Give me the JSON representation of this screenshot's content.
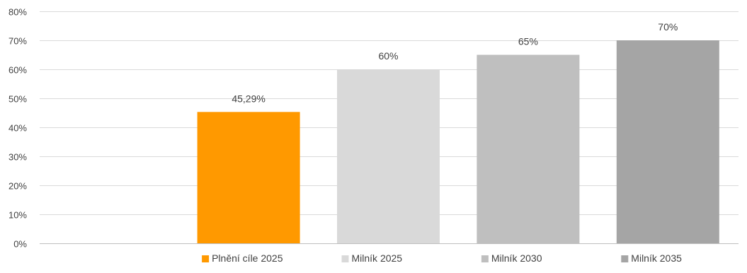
{
  "chart_data": {
    "type": "bar",
    "title": "",
    "xlabel": "",
    "ylabel": "",
    "ylim": [
      0,
      80
    ],
    "y_tick_step": 10,
    "y_tick_suffix": "%",
    "grid": true,
    "legend_position": "bottom",
    "bars": [
      {
        "name": "Plnění cíle 2025",
        "value": 45.29,
        "label": "45,29%",
        "color": "#FF9900"
      },
      {
        "name": "Milník 2025",
        "value": 60,
        "label": "60%",
        "color": "#D9D9D9"
      },
      {
        "name": "Milník 2030",
        "value": 65,
        "label": "65%",
        "color": "#BFBFBF"
      },
      {
        "name": "Milník 2035",
        "value": 70,
        "label": "70%",
        "color": "#A5A5A5"
      }
    ],
    "colors": {
      "grid": "#D9D9D9",
      "axis": "#BFBFBF",
      "text": "#404040"
    }
  }
}
